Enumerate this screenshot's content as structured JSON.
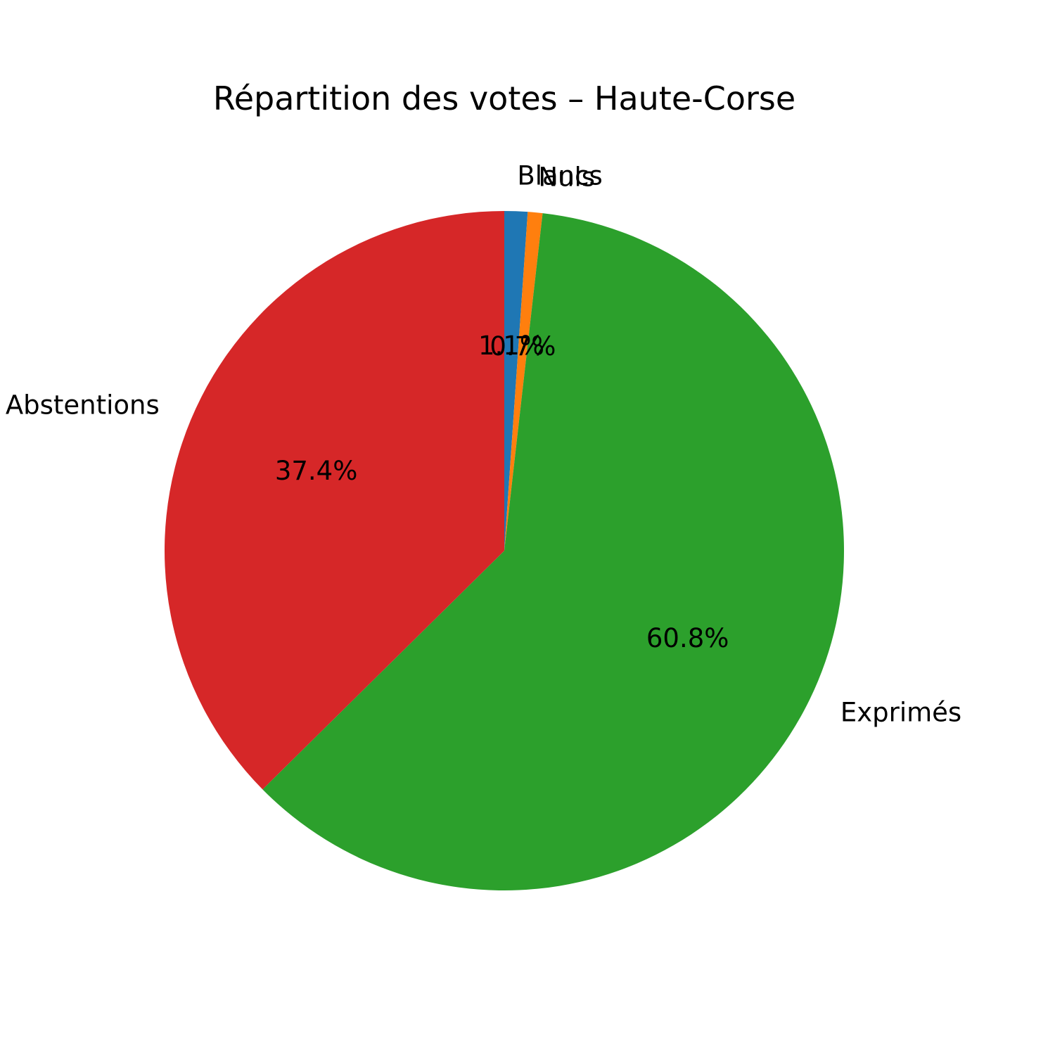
{
  "chart_data": {
    "type": "pie",
    "title": "Répartition des votes – Haute-Corse",
    "start_angle_deg": 90,
    "direction": "clockwise",
    "slices": [
      {
        "label": "Blancs",
        "value": 1.1,
        "pct_text": "1.1%",
        "color": "#1f77b4"
      },
      {
        "label": "Nuls",
        "value": 0.7,
        "pct_text": "0.7%",
        "color": "#ff7f0e"
      },
      {
        "label": "Exprimés",
        "value": 60.8,
        "pct_text": "60.8%",
        "color": "#2ca02c"
      },
      {
        "label": "Abstentions",
        "value": 37.4,
        "pct_text": "37.4%",
        "color": "#d62728"
      }
    ]
  }
}
